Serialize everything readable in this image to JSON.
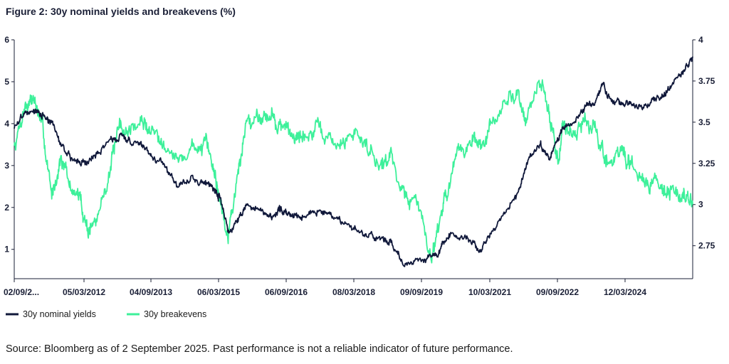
{
  "title": "Figure 2: 30y nominal yields and breakevens (%)",
  "source": "Source: Bloomberg as of 2 September 2025. Past performance is not a reliable indicator of future performance.",
  "colors": {
    "nominal": "#10183a",
    "breakevens": "#3df09a",
    "axis": "#1a1f36"
  },
  "chart_data": {
    "type": "line",
    "title": "Figure 2: 30y nominal yields and breakevens (%)",
    "x_tick_labels": [
      "02/09/2...",
      "05/03/2012",
      "04/09/2013",
      "06/03/2015",
      "06/09/2016",
      "08/03/2018",
      "09/09/2019",
      "10/03/2021",
      "09/09/2022",
      "12/03/2024"
    ],
    "xlim": [
      2010.67,
      2025.67
    ],
    "y_left": {
      "label": "",
      "ylim": [
        0.3,
        6
      ],
      "ticks": [
        1,
        2,
        3,
        4,
        5,
        6
      ]
    },
    "y_right": {
      "label": "",
      "ylim": [
        2.55,
        4
      ],
      "ticks": [
        2.75,
        3,
        3.25,
        3.5,
        3.75,
        4
      ]
    },
    "legend": "bottom-left",
    "grid": false,
    "series": [
      {
        "name": "30y nominal yields",
        "axis": "left",
        "x": [
          2010.67,
          2010.9,
          2011.1,
          2011.3,
          2011.5,
          2011.7,
          2011.9,
          2012.1,
          2012.3,
          2012.5,
          2012.8,
          2013.0,
          2013.2,
          2013.5,
          2013.7,
          2014.0,
          2014.3,
          2014.6,
          2014.9,
          2015.1,
          2015.2,
          2015.4,
          2015.6,
          2015.8,
          2016.1,
          2016.3,
          2016.5,
          2016.65,
          2016.8,
          2017.0,
          2017.3,
          2017.6,
          2017.9,
          2018.2,
          2018.5,
          2018.8,
          2019.0,
          2019.3,
          2019.6,
          2019.9,
          2020.1,
          2020.25,
          2020.5,
          2020.8,
          2021.0,
          2021.2,
          2021.5,
          2021.8,
          2022.0,
          2022.3,
          2022.5,
          2022.7,
          2022.8,
          2023.0,
          2023.3,
          2023.5,
          2023.7,
          2023.9,
          2024.1,
          2024.3,
          2024.6,
          2024.9,
          2025.1,
          2025.3,
          2025.5,
          2025.67
        ],
        "y": [
          3.9,
          4.3,
          4.3,
          4.2,
          4.0,
          3.5,
          3.2,
          3.1,
          3.1,
          3.3,
          3.6,
          3.7,
          3.6,
          3.5,
          3.3,
          3.0,
          2.5,
          2.7,
          2.6,
          2.4,
          2.3,
          1.4,
          1.7,
          2.1,
          1.9,
          1.8,
          1.9,
          1.9,
          1.8,
          1.8,
          1.9,
          1.9,
          1.7,
          1.5,
          1.3,
          1.3,
          1.2,
          0.6,
          0.7,
          0.8,
          1.0,
          1.4,
          1.3,
          1.2,
          1.0,
          1.4,
          1.8,
          2.3,
          3.0,
          3.5,
          3.2,
          3.7,
          3.9,
          4.0,
          4.4,
          4.5,
          4.9,
          4.5,
          4.5,
          4.5,
          4.4,
          4.6,
          4.8,
          5.1,
          5.3,
          5.6
        ]
      },
      {
        "name": "30y breakevens",
        "axis": "right",
        "x": [
          2010.67,
          2010.9,
          2011.1,
          2011.3,
          2011.5,
          2011.7,
          2011.9,
          2012.1,
          2012.3,
          2012.5,
          2012.8,
          2013.0,
          2013.2,
          2013.5,
          2013.7,
          2014.0,
          2014.3,
          2014.6,
          2014.9,
          2015.1,
          2015.2,
          2015.4,
          2015.6,
          2015.8,
          2016.1,
          2016.3,
          2016.5,
          2016.65,
          2016.8,
          2017.0,
          2017.3,
          2017.6,
          2017.9,
          2018.2,
          2018.5,
          2018.8,
          2019.0,
          2019.3,
          2019.6,
          2019.9,
          2020.1,
          2020.25,
          2020.5,
          2020.8,
          2021.0,
          2021.2,
          2021.5,
          2021.8,
          2022.0,
          2022.3,
          2022.5,
          2022.7,
          2022.8,
          2023.0,
          2023.3,
          2023.5,
          2023.7,
          2023.9,
          2024.1,
          2024.3,
          2024.6,
          2024.9,
          2025.1,
          2025.3,
          2025.5,
          2025.67
        ],
        "y": [
          3.35,
          3.6,
          3.65,
          3.45,
          3.05,
          3.3,
          3.1,
          3.05,
          2.85,
          2.9,
          3.25,
          3.45,
          3.45,
          3.5,
          3.45,
          3.4,
          3.25,
          3.35,
          3.35,
          3.2,
          3.05,
          2.85,
          3.15,
          3.5,
          3.55,
          3.55,
          3.5,
          3.45,
          3.45,
          3.4,
          3.45,
          3.4,
          3.35,
          3.45,
          3.35,
          3.25,
          3.3,
          3.05,
          3.0,
          2.7,
          2.95,
          3.1,
          3.3,
          3.4,
          3.35,
          3.45,
          3.6,
          3.7,
          3.5,
          3.75,
          3.55,
          3.25,
          3.5,
          3.45,
          3.5,
          3.45,
          3.3,
          3.25,
          3.35,
          3.2,
          3.15,
          3.15,
          3.1,
          3.05,
          3.05,
          3.0
        ]
      }
    ]
  }
}
